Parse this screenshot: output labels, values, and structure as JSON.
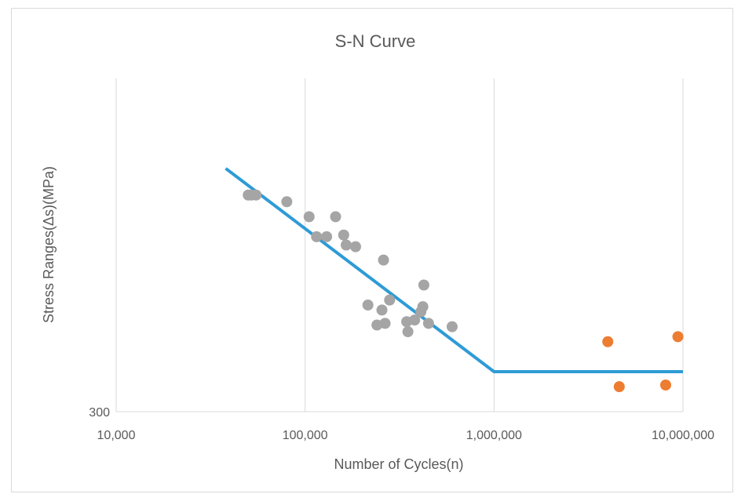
{
  "chart_data": {
    "type": "scatter",
    "title": "S-N Curve",
    "xlabel": "Number of Cycles(n)",
    "ylabel": "Stress Ranges(Δs)(MPa)",
    "x_scale": "log",
    "xlim": [
      10000,
      10000000
    ],
    "x_ticks": [
      10000,
      100000,
      1000000,
      10000000
    ],
    "x_tick_labels": [
      "10,000",
      "100,000",
      "1,000,000",
      "10,000,000"
    ],
    "y_tick_labels": [
      "300"
    ],
    "grid": "vertical",
    "legend": "none",
    "colors": {
      "gray_series": "#a5a5a5",
      "orange_series": "#ed7d31",
      "line": "#2e9bd6",
      "grid": "#d9d9d9",
      "text": "#595959"
    },
    "series": [
      {
        "type": "scatter",
        "points": [
          {
            "x": 50000,
            "y": 0.65
          },
          {
            "x": 52000,
            "y": 0.65
          },
          {
            "x": 55000,
            "y": 0.65
          },
          {
            "x": 80000,
            "y": 0.63
          },
          {
            "x": 105000,
            "y": 0.585
          },
          {
            "x": 115000,
            "y": 0.525
          },
          {
            "x": 130000,
            "y": 0.525
          },
          {
            "x": 145000,
            "y": 0.585
          },
          {
            "x": 160000,
            "y": 0.53
          },
          {
            "x": 165000,
            "y": 0.5
          },
          {
            "x": 185000,
            "y": 0.495
          },
          {
            "x": 215000,
            "y": 0.32
          },
          {
            "x": 240000,
            "y": 0.26
          },
          {
            "x": 255000,
            "y": 0.305
          },
          {
            "x": 260000,
            "y": 0.455
          },
          {
            "x": 265000,
            "y": 0.265
          },
          {
            "x": 280000,
            "y": 0.335
          },
          {
            "x": 345000,
            "y": 0.27
          },
          {
            "x": 350000,
            "y": 0.24
          },
          {
            "x": 380000,
            "y": 0.275
          },
          {
            "x": 410000,
            "y": 0.3
          },
          {
            "x": 420000,
            "y": 0.315
          },
          {
            "x": 425000,
            "y": 0.38
          },
          {
            "x": 450000,
            "y": 0.265
          },
          {
            "x": 600000,
            "y": 0.255
          }
        ]
      },
      {
        "type": "scatter",
        "points": [
          {
            "x": 4000000,
            "y": 0.21
          },
          {
            "x": 4600000,
            "y": 0.075
          },
          {
            "x": 8100000,
            "y": 0.08
          },
          {
            "x": 9400000,
            "y": 0.225
          }
        ]
      },
      {
        "type": "line",
        "points": [
          {
            "x": 38000,
            "y": 0.73
          },
          {
            "x": 1000000,
            "y": 0.12
          },
          {
            "x": 10000000,
            "y": 0.12
          }
        ]
      }
    ]
  }
}
